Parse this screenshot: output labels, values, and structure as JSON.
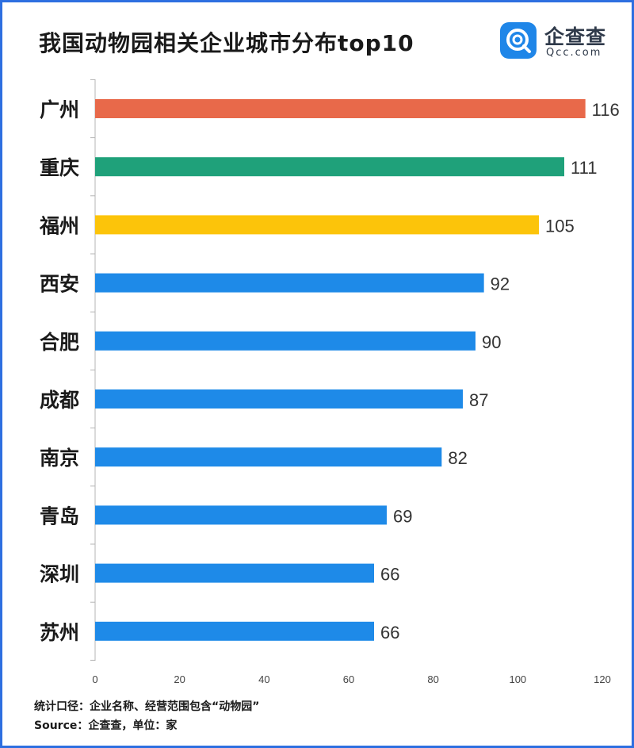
{
  "title": "我国动物园相关企业城市分布top10",
  "brand": {
    "name": "企查查",
    "domain": "Qcc.com",
    "accent": "#1f86e8",
    "icon": "qcc-logo-icon"
  },
  "footer": {
    "note": "统计口径：企业名称、经营范围包含“动物园”",
    "source": "Source：企查查，单位：家"
  },
  "colors": {
    "default_bar": "#1e8ae8",
    "first": "#e8694a",
    "second": "#1fa17a",
    "third": "#fcc40a",
    "axis": "#b5b5b5",
    "tick_text": "#444444"
  },
  "chart_data": {
    "type": "bar",
    "orientation": "horizontal",
    "title": "我国动物园相关企业城市分布top10",
    "categories": [
      "广州",
      "重庆",
      "福州",
      "西安",
      "合肥",
      "成都",
      "南京",
      "青岛",
      "深圳",
      "苏州"
    ],
    "values": [
      116,
      111,
      105,
      92,
      90,
      87,
      82,
      69,
      66,
      66
    ],
    "bar_colors": [
      "#e8694a",
      "#1fa17a",
      "#fcc40a",
      "#1e8ae8",
      "#1e8ae8",
      "#1e8ae8",
      "#1e8ae8",
      "#1e8ae8",
      "#1e8ae8",
      "#1e8ae8"
    ],
    "x_ticks": [
      0,
      20,
      40,
      60,
      80,
      100,
      120
    ],
    "xlim": [
      0,
      120
    ],
    "data_labels": true,
    "grid": false
  }
}
